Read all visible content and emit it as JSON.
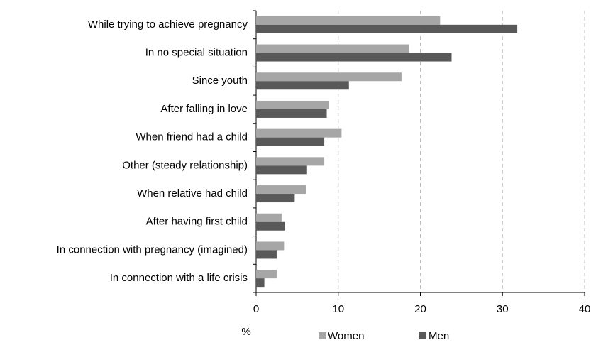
{
  "chart_data": {
    "type": "bar",
    "orientation": "horizontal",
    "x_label": "%",
    "categories": [
      "While trying to achieve pregnancy",
      "In no special situation",
      "Since youth",
      "After falling in love",
      "When friend had a child",
      "Other (steady relationship)",
      "When relative had child",
      "After having first child",
      "In connection with pregnancy (imagined)",
      "In connection with a life crisis"
    ],
    "series": [
      {
        "name": "Women",
        "color": "#a6a6a6",
        "values": [
          22.4,
          18.6,
          17.7,
          8.9,
          10.4,
          8.3,
          6.1,
          3.1,
          3.4,
          2.5
        ]
      },
      {
        "name": "Men",
        "color": "#595959",
        "values": [
          31.8,
          23.8,
          11.3,
          8.6,
          8.3,
          6.2,
          4.7,
          3.5,
          2.5,
          1.0
        ]
      }
    ],
    "xlim": [
      0,
      40
    ],
    "xticks": [
      0,
      10,
      20,
      30,
      40
    ],
    "grid": true,
    "legend": "bottom"
  }
}
